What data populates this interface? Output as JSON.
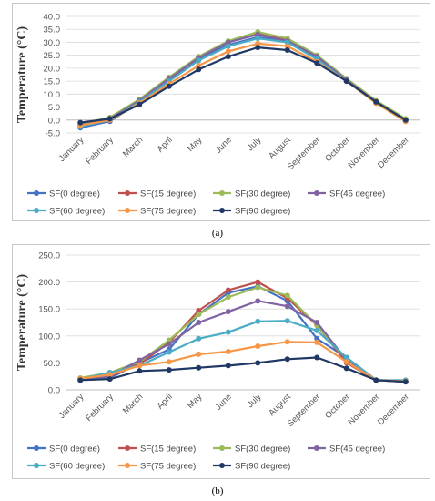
{
  "panels": [
    {
      "caption": "(a)"
    },
    {
      "caption": "(b)"
    }
  ],
  "chart_data": [
    {
      "type": "line",
      "ylabel": "Temperature (°C)",
      "xlabel": "",
      "ylim": [
        -5,
        40
      ],
      "ytick_step": 5,
      "ytick_decimals": 1,
      "grid": true,
      "legend_placement": "bottom",
      "categories": [
        "January",
        "February",
        "March",
        "April",
        "May",
        "June",
        "July",
        "August",
        "September",
        "October",
        "November",
        "December"
      ],
      "series": [
        {
          "name": "SF(0 degree)",
          "color": "#4472c4",
          "values": [
            -3.0,
            -0.5,
            7.0,
            15.5,
            23.5,
            29.0,
            32.0,
            30.5,
            24.5,
            15.5,
            7.0,
            0.0
          ]
        },
        {
          "name": "SF(15 degree)",
          "color": "#c0504d",
          "values": [
            -2.0,
            0.5,
            7.5,
            16.0,
            24.0,
            30.0,
            33.5,
            31.0,
            24.5,
            15.5,
            7.0,
            0.0
          ]
        },
        {
          "name": "SF(30 degree)",
          "color": "#9bbb59",
          "values": [
            -1.5,
            1.0,
            8.0,
            16.5,
            24.5,
            30.5,
            34.0,
            31.5,
            25.0,
            16.0,
            7.5,
            0.5
          ]
        },
        {
          "name": "SF(45 degree)",
          "color": "#8064a2",
          "values": [
            -2.0,
            0.5,
            7.5,
            16.0,
            24.0,
            30.0,
            33.0,
            30.5,
            24.5,
            15.5,
            7.0,
            0.0
          ]
        },
        {
          "name": "SF(60 degree)",
          "color": "#4bacc6",
          "values": [
            -2.5,
            0.0,
            7.0,
            15.0,
            23.0,
            28.5,
            31.5,
            30.0,
            23.5,
            15.0,
            6.5,
            -0.5
          ]
        },
        {
          "name": "SF(75 degree)",
          "color": "#f79646",
          "values": [
            -2.0,
            0.0,
            6.5,
            14.0,
            21.0,
            26.5,
            29.5,
            28.5,
            22.5,
            15.0,
            6.5,
            -0.5
          ]
        },
        {
          "name": "SF(90 degree)",
          "color": "#1f3864",
          "values": [
            -1.0,
            0.5,
            6.0,
            13.0,
            19.5,
            24.5,
            28.0,
            27.0,
            22.0,
            15.0,
            7.0,
            0.0
          ]
        }
      ]
    },
    {
      "type": "line",
      "ylabel": "Temperature (°C)",
      "xlabel": "",
      "ylim": [
        0,
        250
      ],
      "ytick_step": 50,
      "ytick_decimals": 1,
      "grid": true,
      "legend_placement": "bottom",
      "categories": [
        "January",
        "February",
        "March",
        "April",
        "May",
        "June",
        "July",
        "August",
        "September",
        "October",
        "November",
        "December"
      ],
      "series": [
        {
          "name": "SF(0 degree)",
          "color": "#4472c4",
          "values": [
            20,
            22,
            50,
            75,
            140,
            180,
            192,
            165,
            95,
            60,
            18,
            15
          ]
        },
        {
          "name": "SF(15 degree)",
          "color": "#c0504d",
          "values": [
            20,
            25,
            48,
            88,
            147,
            185,
            200,
            170,
            120,
            50,
            18,
            15
          ]
        },
        {
          "name": "SF(30 degree)",
          "color": "#9bbb59",
          "values": [
            22,
            32,
            52,
            92,
            140,
            172,
            190,
            175,
            120,
            55,
            18,
            15
          ]
        },
        {
          "name": "SF(45 degree)",
          "color": "#8064a2",
          "values": [
            18,
            25,
            55,
            85,
            125,
            145,
            165,
            155,
            125,
            55,
            18,
            15
          ]
        },
        {
          "name": "SF(60 degree)",
          "color": "#4bacc6",
          "values": [
            20,
            32,
            45,
            70,
            95,
            107,
            127,
            128,
            110,
            60,
            18,
            18
          ]
        },
        {
          "name": "SF(75 degree)",
          "color": "#f79646",
          "values": [
            21,
            28,
            45,
            52,
            66,
            71,
            81,
            89,
            88,
            52,
            18,
            16
          ]
        },
        {
          "name": "SF(90 degree)",
          "color": "#1f3864",
          "values": [
            18,
            20,
            35,
            37,
            41,
            45,
            50,
            57,
            60,
            40,
            18,
            15
          ]
        }
      ]
    }
  ]
}
